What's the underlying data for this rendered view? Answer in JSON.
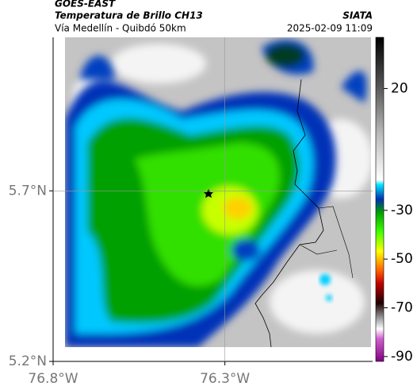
{
  "header": {
    "title": "GOES-EAST",
    "subtitle": "Temperatura de Brillo CH13",
    "region": "Vía Medellín - Quibdó 50km",
    "source": "SIATA",
    "timestamp": "2025-02-09 11:09"
  },
  "map": {
    "xlim": [
      -76.8,
      -75.87
    ],
    "ylim": [
      5.2,
      6.15
    ],
    "xticks": [
      {
        "value": -76.8,
        "label": "76.8°W"
      },
      {
        "value": -76.3,
        "label": "76.3°W"
      }
    ],
    "yticks": [
      {
        "value": 5.2,
        "label": "5.2°N"
      },
      {
        "value": 5.7,
        "label": "5.7°N"
      }
    ]
  },
  "colorbar": {
    "lim": [
      -92,
      41
    ],
    "ticks": [
      20,
      -30,
      -50,
      -70,
      -90
    ]
  }
}
